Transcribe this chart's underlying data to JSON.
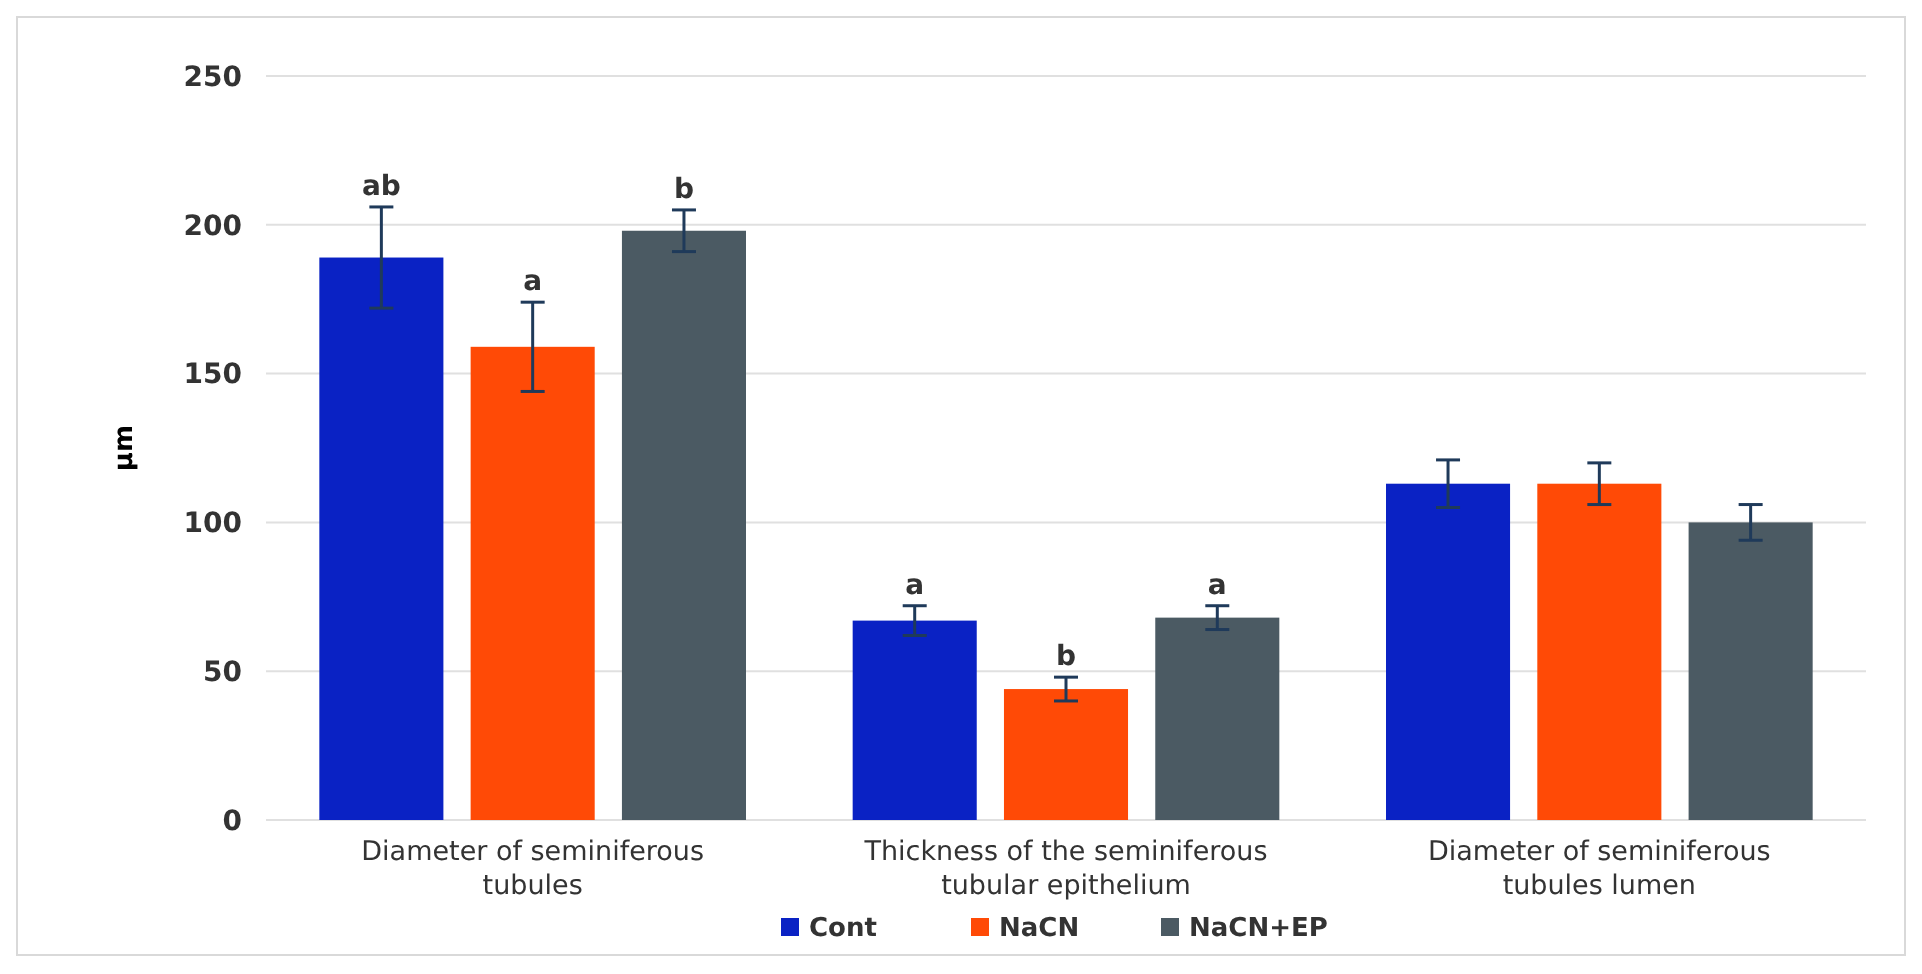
{
  "chart_data": {
    "type": "bar",
    "ylabel": "µm",
    "categories": [
      "Diameter of seminiferous tubules",
      "Thickness of the seminiferous tubular epithelium",
      "Diameter of seminiferous tubules lumen"
    ],
    "series": [
      {
        "name": "Cont",
        "color": "#0a22c4",
        "values": [
          189,
          67,
          113
        ],
        "errors": [
          17,
          5,
          8
        ],
        "value_labels": [
          "ab",
          "a",
          null
        ]
      },
      {
        "name": "NaCN",
        "color": "#ff4a06",
        "values": [
          159,
          44,
          113
        ],
        "errors": [
          15,
          4,
          7
        ],
        "value_labels": [
          "a",
          "b",
          null
        ]
      },
      {
        "name": "NaCN+EP",
        "color": "#4b5a63",
        "values": [
          198,
          68,
          100
        ],
        "errors": [
          7,
          4,
          6
        ],
        "value_labels": [
          "b",
          "a",
          null
        ]
      }
    ],
    "ylim": [
      0,
      250
    ],
    "yticks": [
      0,
      50,
      100,
      150,
      200,
      250
    ],
    "grid": "y",
    "legend": "bottom"
  }
}
